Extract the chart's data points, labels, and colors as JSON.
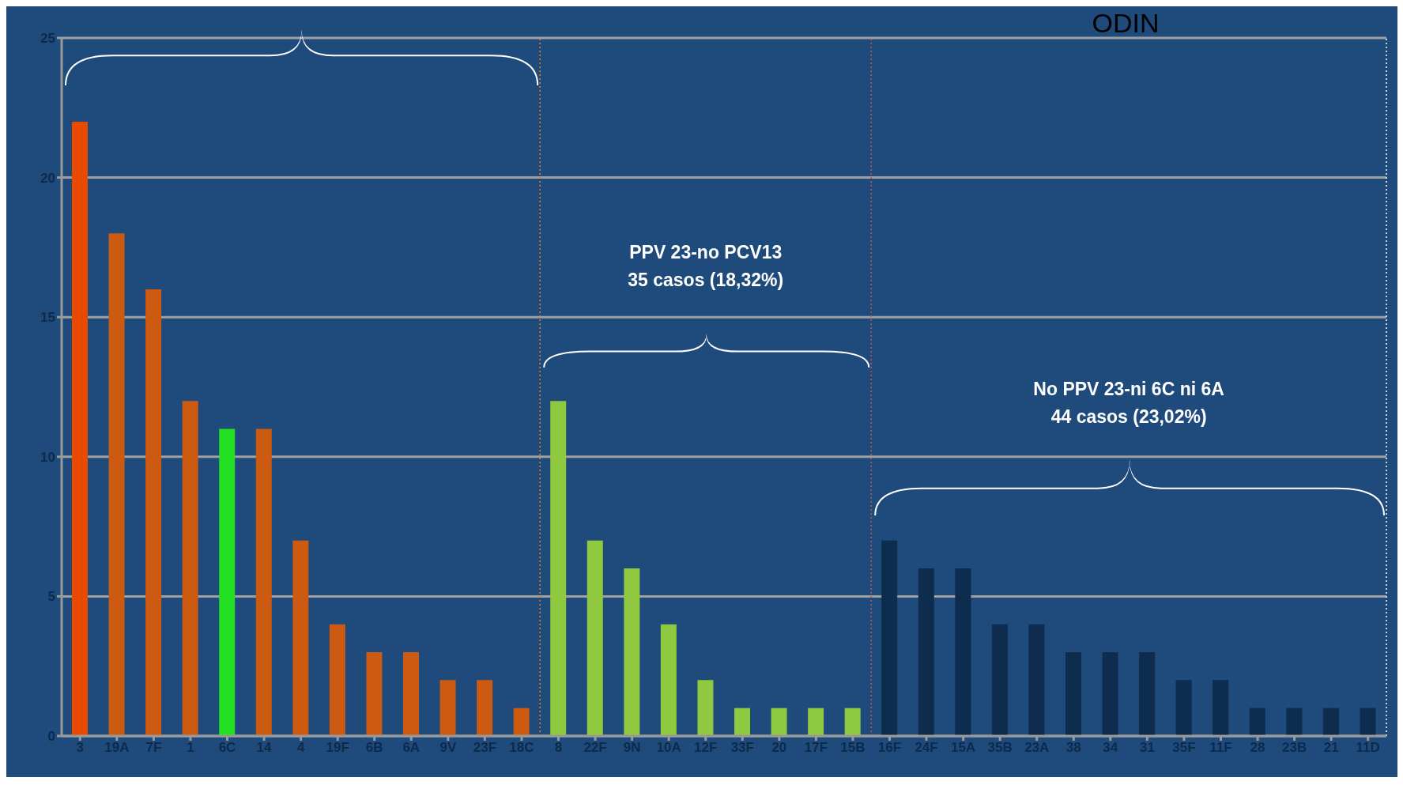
{
  "chart_data": {
    "type": "bar",
    "title": "ODIN",
    "categories": [
      "3",
      "19A",
      "7F",
      "1",
      "6C",
      "14",
      "4",
      "19F",
      "6B",
      "6A",
      "9V",
      "23F",
      "18C",
      "8",
      "22F",
      "9N",
      "10A",
      "12F",
      "33F",
      "20",
      "17F",
      "15B",
      "16F",
      "24F",
      "15A",
      "35B",
      "23A",
      "38",
      "34",
      "31",
      "35F",
      "11F",
      "28",
      "23B",
      "21",
      "11D"
    ],
    "values": [
      22,
      18,
      16,
      12,
      11,
      11,
      7,
      4,
      3,
      3,
      2,
      2,
      1,
      12,
      7,
      6,
      4,
      2,
      1,
      1,
      1,
      1,
      7,
      6,
      6,
      4,
      4,
      3,
      3,
      3,
      2,
      2,
      1,
      1,
      1,
      1
    ],
    "colors": [
      "#e84a00",
      "#cc5a10",
      "#cc5a10",
      "#cc5a10",
      "#22e022",
      "#cc5a10",
      "#cc5a10",
      "#cc5a10",
      "#cc5a10",
      "#cc5a10",
      "#cc5a10",
      "#cc5a10",
      "#cc5a10",
      "#8fc93f",
      "#8fc93f",
      "#8fc93f",
      "#8fc93f",
      "#8fc93f",
      "#8fc93f",
      "#8fc93f",
      "#8fc93f",
      "#8fc93f",
      "#0e2c4e",
      "#0e2c4e",
      "#0e2c4e",
      "#0e2c4e",
      "#0e2c4e",
      "#0e2c4e",
      "#0e2c4e",
      "#0e2c4e",
      "#0e2c4e",
      "#0e2c4e",
      "#0e2c4e",
      "#0e2c4e",
      "#0e2c4e",
      "#0e2c4e"
    ],
    "ref_lines": [
      {
        "axis": "x",
        "value": "18C",
        "color": "#e8822a",
        "line_style": "dotted"
      },
      {
        "axis": "x",
        "value": "15B",
        "color": "#d0504a",
        "line_style": "dotted"
      },
      {
        "axis": "x",
        "value": "11D",
        "color": "#ffffff",
        "line_style": "dotted"
      }
    ],
    "ylim": [
      0,
      25
    ],
    "yticks": [
      0,
      5,
      10,
      15,
      20,
      25
    ],
    "grid": "y",
    "legend": false,
    "annotations": [
      "PPV 23-no PCV13\n35 casos (18,32%)",
      "No PPV 23-ni 6C ni 6A\n44 casos (23,02%)"
    ]
  }
}
